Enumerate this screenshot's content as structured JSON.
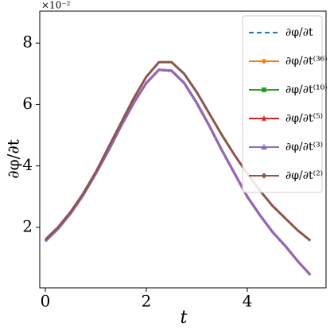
{
  "chart_data": {
    "type": "line",
    "xlabel": "t",
    "ylabel": "∂φ/∂t",
    "y_offset_label": "×10⁻²",
    "x": [
      0,
      0.25,
      0.5,
      0.75,
      1,
      1.25,
      1.5,
      1.75,
      2,
      2.25,
      2.5,
      2.75,
      3,
      3.25,
      3.5,
      3.75,
      4,
      4.25,
      4.5,
      4.75,
      5,
      5.25
    ],
    "series": [
      {
        "name": "∂φ/∂t",
        "color": "#1f77b4",
        "dashed": true,
        "marker": null,
        "values": [
          1.55,
          1.95,
          2.45,
          3.05,
          3.75,
          4.5,
          5.3,
          6.05,
          6.7,
          7.13,
          7.1,
          6.7,
          6.05,
          5.3,
          4.5,
          3.75,
          3.0,
          2.4,
          1.85,
          1.4,
          0.9,
          0.45
        ]
      },
      {
        "name": "∂φ/∂t⁽³⁶⁾",
        "color": "#ff7f0e",
        "marker": "circle",
        "values": [
          1.55,
          1.95,
          2.45,
          3.05,
          3.75,
          4.5,
          5.3,
          6.05,
          6.7,
          7.13,
          7.1,
          6.7,
          6.05,
          5.3,
          4.5,
          3.75,
          3.0,
          2.4,
          1.85,
          1.4,
          0.9,
          0.45
        ]
      },
      {
        "name": "∂φ/∂t⁽¹⁰⁾",
        "color": "#2ca02c",
        "marker": "square",
        "values": [
          1.55,
          1.95,
          2.45,
          3.05,
          3.75,
          4.5,
          5.3,
          6.05,
          6.7,
          7.13,
          7.1,
          6.7,
          6.05,
          5.3,
          4.5,
          3.75,
          3.0,
          2.4,
          1.85,
          1.4,
          0.9,
          0.45
        ]
      },
      {
        "name": "∂φ/∂t⁽⁵⁾",
        "color": "#d62728",
        "marker": "star",
        "values": [
          1.55,
          1.95,
          2.45,
          3.05,
          3.75,
          4.5,
          5.3,
          6.05,
          6.7,
          7.13,
          7.1,
          6.7,
          6.05,
          5.3,
          4.5,
          3.75,
          3.0,
          2.4,
          1.85,
          1.4,
          0.9,
          0.45
        ]
      },
      {
        "name": "∂φ/∂t⁽³⁾",
        "color": "#9467bd",
        "marker": "triangle",
        "values": [
          1.55,
          1.95,
          2.45,
          3.05,
          3.75,
          4.5,
          5.3,
          6.05,
          6.7,
          7.13,
          7.1,
          6.7,
          6.05,
          5.3,
          4.5,
          3.75,
          3.0,
          2.4,
          1.85,
          1.4,
          0.9,
          0.45
        ]
      },
      {
        "name": "∂φ/∂t⁽²⁾",
        "color": "#8c564b",
        "marker": "diamond",
        "values": [
          1.6,
          2.0,
          2.5,
          3.1,
          3.8,
          4.6,
          5.4,
          6.2,
          6.9,
          7.38,
          7.38,
          7.0,
          6.4,
          5.7,
          5.0,
          4.35,
          3.75,
          3.2,
          2.7,
          2.3,
          1.9,
          1.57
        ]
      }
    ],
    "xlim": [
      -0.11,
      5.56
    ],
    "xticks": [
      0,
      2,
      4
    ],
    "ylim": [
      0.03,
      9.04
    ],
    "yticks": [
      2,
      4,
      6,
      8
    ],
    "legend": "upper right"
  }
}
